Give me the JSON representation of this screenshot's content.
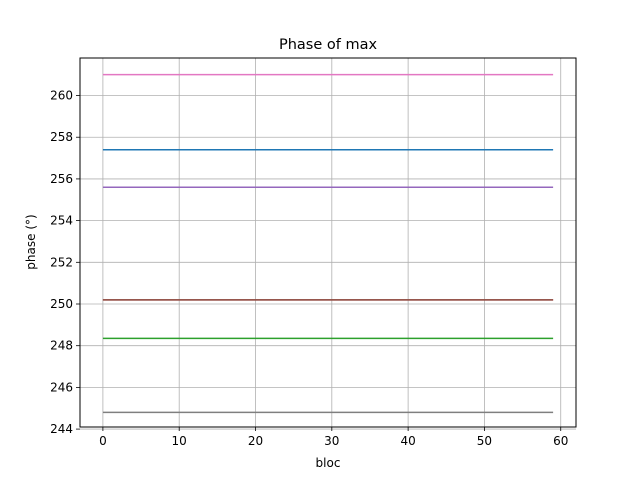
{
  "chart_data": {
    "type": "line",
    "title": "Phase of max",
    "xlabel": "bloc",
    "ylabel": "phase (°)",
    "xlim": [
      -3,
      62
    ],
    "ylim": [
      244.1,
      261.8
    ],
    "x_ticks": [
      0,
      10,
      20,
      30,
      40,
      50,
      60
    ],
    "y_ticks": [
      244,
      246,
      248,
      250,
      252,
      254,
      256,
      258,
      260
    ],
    "grid": true,
    "legend": "none",
    "x": {
      "start": 0,
      "end": 59,
      "step": 1
    },
    "series": [
      {
        "color": "#e377c2",
        "y_const": 261.0
      },
      {
        "color": "#1f77b4",
        "y_const": 257.4
      },
      {
        "color": "#9467bd",
        "y_const": 255.6
      },
      {
        "color": "#d62728",
        "y_const": 250.2
      },
      {
        "color": "#8c564b",
        "y_const": 250.2
      },
      {
        "color": "#2ca02c",
        "y_const": 248.35
      },
      {
        "color": "#7f7f7f",
        "y_const": 244.8
      }
    ]
  }
}
